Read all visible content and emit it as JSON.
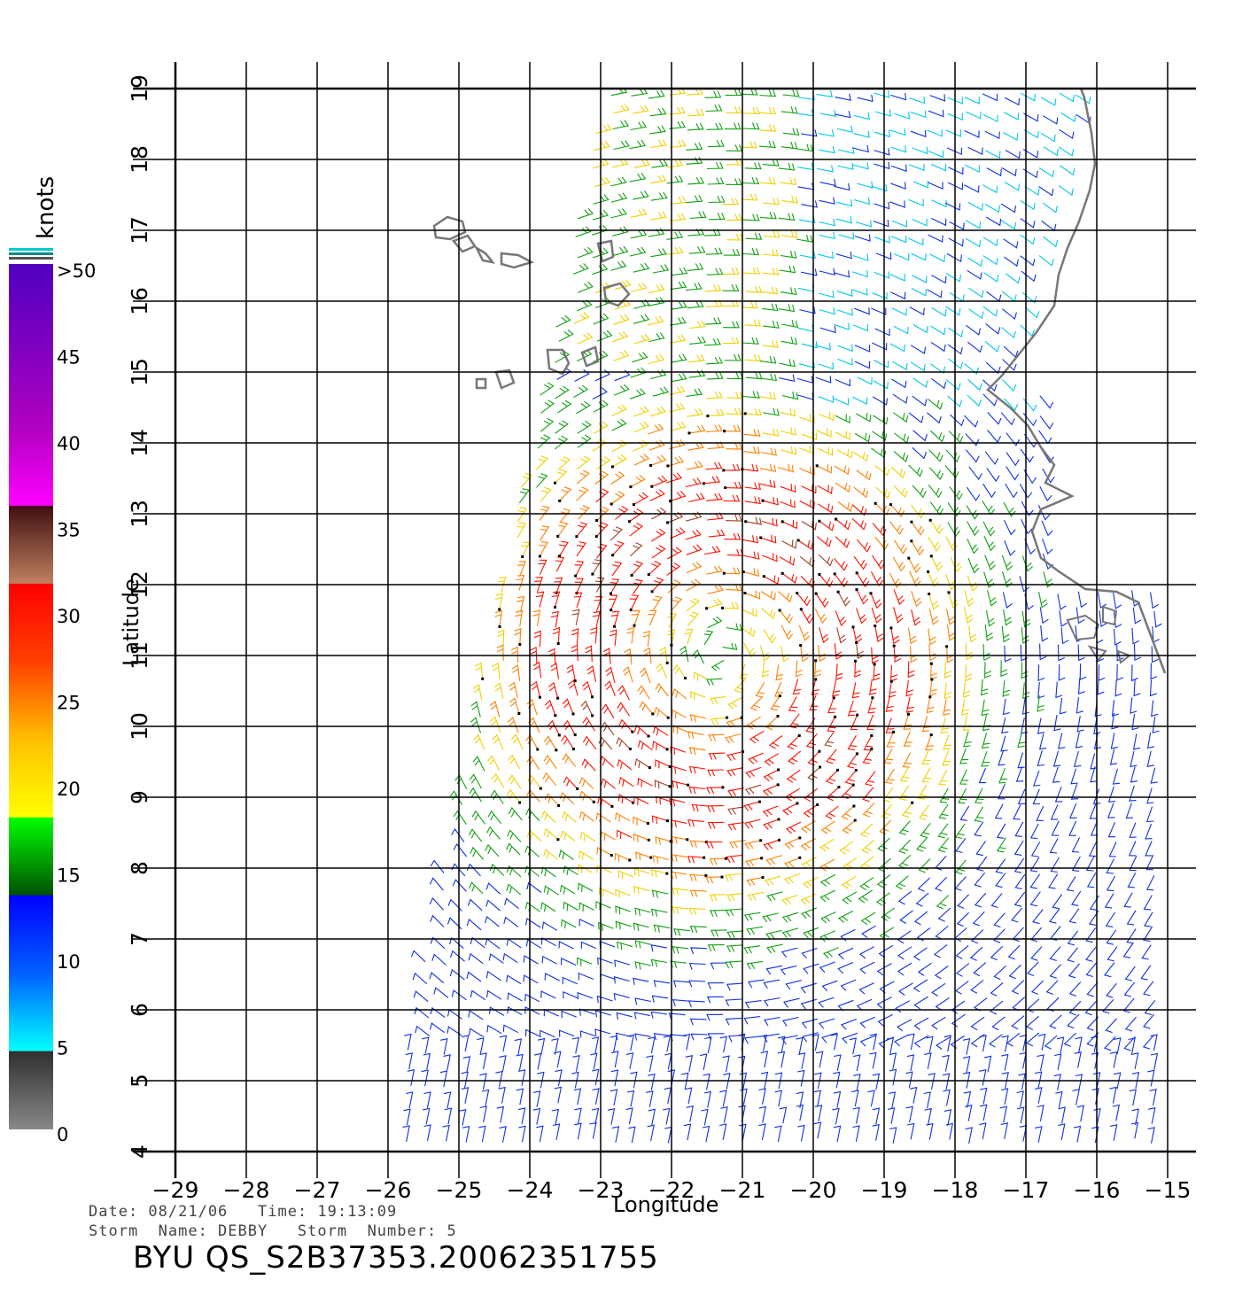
{
  "colorbar": {
    "unit": "knots",
    "tick_labels": [
      ">50",
      "45",
      "40",
      "35",
      "30",
      "25",
      "20",
      "15",
      "10",
      "5",
      "0"
    ],
    "color_stops": [
      "#808080",
      "#303030",
      "#00ffff",
      "#0000ff",
      "#006000",
      "#00ff00",
      "#ffff00",
      "#ffc000",
      "#ff7000",
      "#ff2000",
      "#ff0000",
      "#c08060",
      "#401010",
      "#ff00ff",
      "#a000c0",
      "#6000c0"
    ]
  },
  "axes": {
    "xlabel": "Longitude",
    "ylabel": "Latitude",
    "x_ticks": [
      "-29",
      "-28",
      "-27",
      "-26",
      "-25",
      "-24",
      "-23",
      "-22",
      "-21",
      "-20",
      "-19",
      "-18",
      "-17",
      "-16",
      "-15"
    ],
    "y_ticks": [
      "4",
      "5",
      "6",
      "7",
      "8",
      "9",
      "10",
      "11",
      "12",
      "13",
      "14",
      "15",
      "16",
      "17",
      "18",
      "19"
    ],
    "xlim": [
      -29,
      -15
    ],
    "ylim": [
      4,
      19
    ],
    "grid": true
  },
  "footer": {
    "date_line": "Date: 08/21/06   Time: 19:13:09",
    "storm_line": "Storm  Name: DEBBY   Storm  Number: 5",
    "product_id": "BYU  QS_S2B37353.20062351755"
  },
  "map_content": {
    "type": "scatterometer wind barbs",
    "storm_center_approx": {
      "lon": -21.3,
      "lat": 11.0
    },
    "coastline": "West Africa (Senegal, Gambia, Guinea-Bissau) and Cape Verde Islands"
  }
}
